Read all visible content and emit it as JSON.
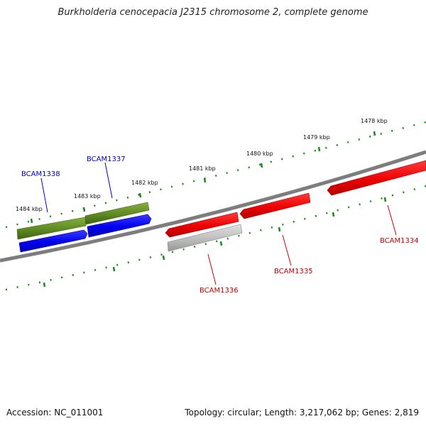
{
  "title": "Burkholderia cenocepacia J2315 chromosome 2, complete genome",
  "footer": {
    "accession": "Accession: NC_011001",
    "summary": "Topology: circular; Length: 3,217,062 bp; Genes: 2,819"
  },
  "colors": {
    "backbone": "#7a7a7a",
    "tick": "#1a8a1a",
    "forward_gene": "#ee0000",
    "reverse_gene": "#0000ee",
    "cds_forward": "#bdbdbd",
    "cds_reverse": "#5e8a22",
    "label_red": "#cc0000",
    "label_blue": "#0000cc"
  },
  "scale_labels": [
    "1484 kbp",
    "1483 kbp",
    "1482 kbp",
    "1481 kbp",
    "1480 kbp",
    "1479 kbp",
    "1478 kbp"
  ],
  "genes": [
    {
      "id": "BCAM1338",
      "strand": "reverse"
    },
    {
      "id": "BCAM1337",
      "strand": "reverse"
    },
    {
      "id": "BCAM1336",
      "strand": "forward"
    },
    {
      "id": "BCAM1335",
      "strand": "forward"
    },
    {
      "id": "BCAM1334",
      "strand": "forward"
    }
  ]
}
